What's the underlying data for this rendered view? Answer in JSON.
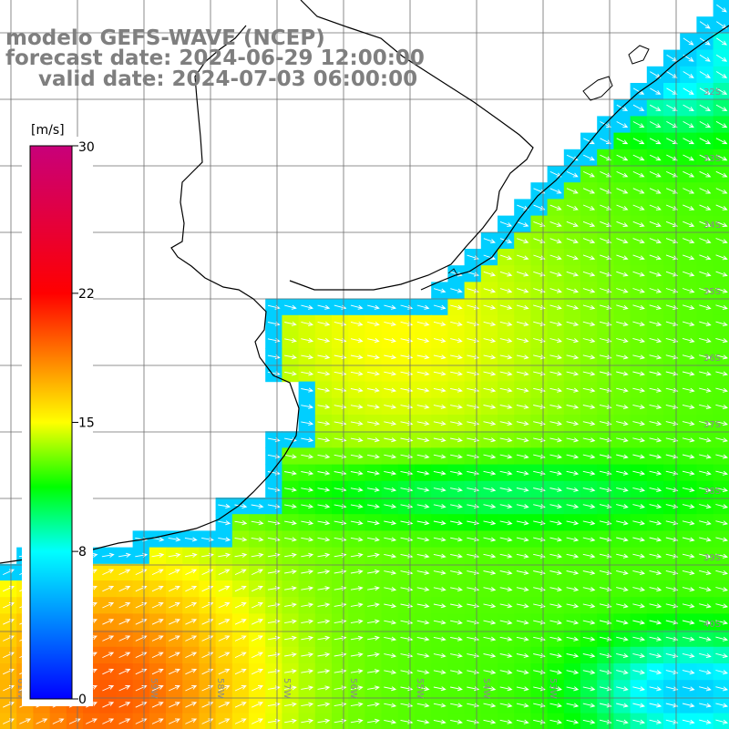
{
  "title": {
    "line1": "modelo GEFS-WAVE (NCEP)",
    "line2": "forecast date: 2024-06-29 12:00:00",
    "line3": "valid date: 2024-07-03 06:00:00"
  },
  "colorbar": {
    "unit": "[m/s]",
    "ticks": [
      "30",
      "22",
      "15",
      "8",
      "0"
    ],
    "tick_values": [
      30,
      22,
      15,
      8,
      0
    ],
    "range": [
      0,
      30
    ],
    "stops": [
      {
        "v": 0,
        "c": "#0000ff"
      },
      {
        "v": 8,
        "c": "#00ffff"
      },
      {
        "v": 11.5,
        "c": "#00ff00"
      },
      {
        "v": 15,
        "c": "#ffff00"
      },
      {
        "v": 18.5,
        "c": "#ff8000"
      },
      {
        "v": 22,
        "c": "#ff0000"
      },
      {
        "v": 30,
        "c": "#c8007a"
      }
    ]
  },
  "latitude_labels": [
    "32S",
    "33S",
    "34S",
    "35S",
    "36S",
    "37S",
    "38S",
    "39S",
    "40S"
  ],
  "longitude_labels": [
    "61W",
    "60W",
    "59W",
    "58W",
    "57W",
    "56W",
    "55W",
    "54W",
    "53W"
  ],
  "colors": {
    "land": "#ffffff",
    "coast": "#000000",
    "grid": "#6e6e6e",
    "arrow": "#ffffff",
    "title": "#7f7f7f"
  }
}
